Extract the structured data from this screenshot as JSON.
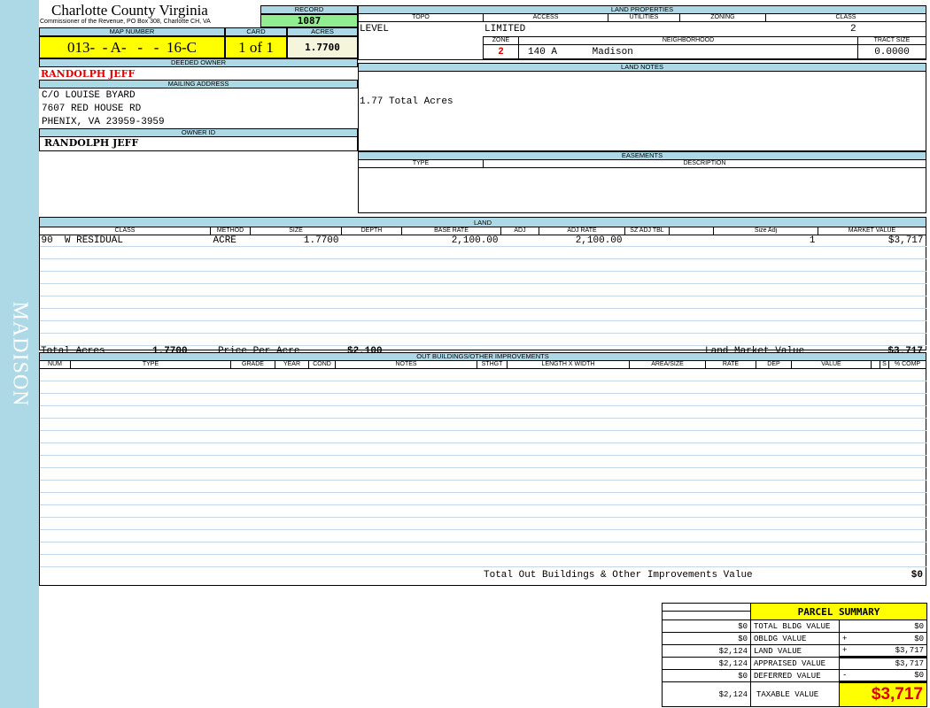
{
  "sidebar": {
    "label": "MADISON"
  },
  "header": {
    "county": "Charlotte County Virginia",
    "subtitle": "Commissioner of the Revenue, PO Box 308, Charlotte CH, VA",
    "record_label": "RECORD",
    "record": "1087",
    "map_label": "MAP NUMBER",
    "map_number": "013-  - A-   -   -  16-C",
    "card_label": "CARD",
    "card": "1 of 1",
    "acres_label": "ACRES",
    "acres": "1.7700"
  },
  "owner": {
    "deeded_label": "DEEDED OWNER",
    "deeded": "RANDOLPH JEFF",
    "mailing_label": "MAILING ADDRESS",
    "address": [
      "C/O LOUISE BYARD",
      "7607 RED HOUSE RD",
      "PHENIX, VA 23959-3959"
    ],
    "id_label": "OWNER ID",
    "id": "RANDOLPH JEFF"
  },
  "land_properties": {
    "title": "LAND PROPERTIES",
    "topo_label": "TOPO",
    "access_label": "ACCESS",
    "utilities_label": "UTILITIES",
    "zoning_label": "ZONING",
    "class_label": "CLASS",
    "topo": "LEVEL",
    "access": "LIMITED",
    "class": "2",
    "zone_label": "ZONE",
    "neighborhood_label": "NEIGHBORHOOD",
    "tract_label": "TRACT SIZE",
    "zone": "2",
    "neighborhood_code": "140 A",
    "neighborhood": "Madison",
    "tract_size": "0.0000"
  },
  "land_notes": {
    "title": "LAND NOTES",
    "text": "1.77 Total Acres"
  },
  "easements": {
    "title": "EASEMENTS",
    "type_label": "TYPE",
    "description_label": "DESCRIPTION"
  },
  "land": {
    "title": "LAND",
    "columns": [
      "CLASS",
      "METHOD",
      "SIZE",
      "DEPTH",
      "BASE RATE",
      "ADJ",
      "ADJ RATE",
      "SZ ADJ TBL",
      "",
      "Size Adj",
      "MARKET VALUE"
    ],
    "rows": [
      [
        "90  W RESIDUAL",
        "ACRE",
        "1.7700",
        "",
        "2,100.00",
        "",
        "2,100.00",
        "",
        "",
        "1",
        "$3,717"
      ]
    ],
    "total_acres_label": "Total Acres",
    "total_acres": "1.7700",
    "price_label": "Price Per Acre",
    "price": "$2,100",
    "market_label": "Land Market Value",
    "market": "$3,717"
  },
  "outbuildings": {
    "title": "OUT BUILDINGS/OTHER IMPROVEMENTS",
    "columns": [
      "NUM",
      "TYPE",
      "GRADE",
      "YEAR",
      "COND",
      "NOTES",
      "STHGT",
      "LENGTH X WIDTH",
      "AREA/SIZE",
      "RATE",
      "DEP",
      "VALUE",
      "",
      "S",
      "% COMP"
    ],
    "total_label": "Total Out Buildings & Other Improvements Value",
    "total": "$0"
  },
  "summary": {
    "title": "PARCEL SUMMARY",
    "rows": [
      {
        "left": "$0",
        "label": "TOTAL BLDG VALUE",
        "op": "",
        "value": "$0"
      },
      {
        "left": "$0",
        "label": "OBLDG VALUE",
        "op": "+",
        "value": "$0"
      },
      {
        "left": "$2,124",
        "label": "LAND VALUE",
        "op": "+",
        "value": "$3,717"
      },
      {
        "left": "$2,124",
        "label": "APPRAISED VALUE",
        "op": "",
        "value": "$3,717"
      },
      {
        "left": "$0",
        "label": "DEFERRED VALUE",
        "op": "-",
        "value": "$0"
      }
    ],
    "taxable_left": "$2,124",
    "taxable_label": "TAXABLE VALUE",
    "taxable": "$3,717"
  },
  "colors": {
    "header_blue": "#add8e6",
    "yellow": "#ffff00",
    "record_green": "#90ee90",
    "red": "#e00000"
  }
}
